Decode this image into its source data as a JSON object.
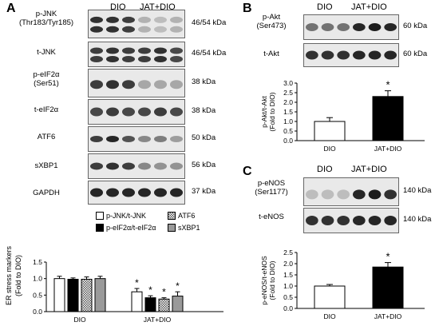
{
  "panels": {
    "A": {
      "letter": "A",
      "group1": "DIO",
      "group2": "JAT+DIO",
      "blots": [
        {
          "label": "p-JNK",
          "label2": "(Thr183/Tyr185)",
          "kda": "46/54 kDa"
        },
        {
          "label": "t-JNK",
          "label2": "",
          "kda": "46/54 kDa"
        },
        {
          "label": "p-eIF2α",
          "label2": "(Ser51)",
          "kda": "38 kDa"
        },
        {
          "label": "t-eIF2α",
          "label2": "",
          "kda": "38 kDa"
        },
        {
          "label": "ATF6",
          "label2": "",
          "kda": "50 kDa"
        },
        {
          "label": "sXBP1",
          "label2": "",
          "kda": "56 kDa"
        },
        {
          "label": "GAPDH",
          "label2": "",
          "kda": "37 kDa"
        }
      ],
      "legend": [
        "p-JNK/t-JNK",
        "p-eIF2α/t-eIF2α",
        "ATF6",
        "sXBP1"
      ]
    },
    "B": {
      "letter": "B",
      "group1": "DIO",
      "group2": "JAT+DIO",
      "blots": [
        {
          "label": "p-Akt",
          "label2": "(Ser473)",
          "kda": "60 kDa"
        },
        {
          "label": "t-Akt",
          "label2": "",
          "kda": "60 kDa"
        }
      ]
    },
    "C": {
      "letter": "C",
      "group1": "DIO",
      "group2": "JAT+DIO",
      "blots": [
        {
          "label": "p-eNOS",
          "label2": "(Ser1177)",
          "kda": "140 kDa"
        },
        {
          "label": "t-eNOS",
          "label2": "",
          "kda": "140 kDa"
        }
      ]
    }
  },
  "chart_data": [
    {
      "type": "bar",
      "ylabel": "ER stress markers (Fold to DIO)",
      "categories": [
        "DIO",
        "JAT+DIO"
      ],
      "ylim": [
        0,
        1.5
      ],
      "yticks": [
        "0.0",
        "0.5",
        "1.0",
        "1.5"
      ],
      "series": [
        {
          "name": "p-JNK/t-JNK",
          "values": [
            1.0,
            0.6
          ],
          "err": [
            0.07,
            0.1
          ],
          "fill": "white"
        },
        {
          "name": "p-eIF2α/t-eIF2α",
          "values": [
            0.98,
            0.42
          ],
          "err": [
            0.04,
            0.06
          ],
          "fill": "black"
        },
        {
          "name": "ATF6",
          "values": [
            0.98,
            0.38
          ],
          "err": [
            0.07,
            0.04
          ],
          "fill": "checker"
        },
        {
          "name": "sXBP1",
          "values": [
            1.0,
            0.47
          ],
          "err": [
            0.07,
            0.13
          ],
          "fill": "gray"
        }
      ],
      "significance": [
        "",
        "*"
      ]
    },
    {
      "type": "bar",
      "ylabel": "p-Akt/t-Akt (Fold to DIO)",
      "categories": [
        "DIO",
        "JAT+DIO"
      ],
      "values": [
        1.0,
        2.3
      ],
      "err": [
        0.2,
        0.3
      ],
      "ylim": [
        0,
        3.0
      ],
      "yticks": [
        "0.0",
        "0.5",
        "1.0",
        "1.5",
        "2.0",
        "2.5",
        "3.0"
      ],
      "significance": [
        "",
        "*"
      ]
    },
    {
      "type": "bar",
      "ylabel": "p-eNOS/t-eNOS (Fold to DIO)",
      "categories": [
        "DIO",
        "JAT+DIO"
      ],
      "values": [
        1.0,
        1.85
      ],
      "err": [
        0.07,
        0.2
      ],
      "ylim": [
        0,
        2.5
      ],
      "yticks": [
        "0.0",
        "0.5",
        "1.0",
        "1.5",
        "2.0",
        "2.5"
      ],
      "significance": [
        "",
        "*"
      ]
    }
  ]
}
